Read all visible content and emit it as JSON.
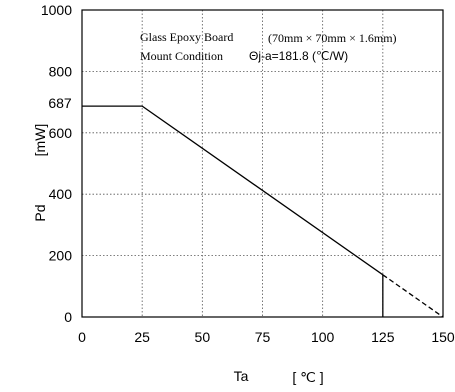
{
  "chart_data": {
    "type": "line",
    "title": "",
    "xlabel": "Ta",
    "xunit": "[ ℃ ]",
    "ylabel": "Pd",
    "yunit": "[mW]",
    "xlim": [
      0,
      150
    ],
    "ylim": [
      0,
      1000
    ],
    "x_ticks": [
      0,
      25,
      50,
      75,
      100,
      125,
      150
    ],
    "y_ticks": [
      0,
      200,
      400,
      600,
      800,
      1000
    ],
    "extra_y_label": "687",
    "grid": true,
    "annotations": {
      "line1_left": "Glass Epoxy Board",
      "line1_right": "(70mm × 70mm × 1.6mm)",
      "line2_left": "Mount Condition",
      "line2_right": "Θj-a=181.8 (℃/W)"
    },
    "series": [
      {
        "style": "solid",
        "x": [
          0,
          25,
          125
        ],
        "y": [
          687,
          687,
          137.5
        ]
      },
      {
        "style": "dashed",
        "x": [
          125,
          150
        ],
        "y": [
          137.5,
          0
        ]
      }
    ],
    "vertical_marker": {
      "x": 125,
      "y_from": 0,
      "y_to": 137.5
    }
  }
}
